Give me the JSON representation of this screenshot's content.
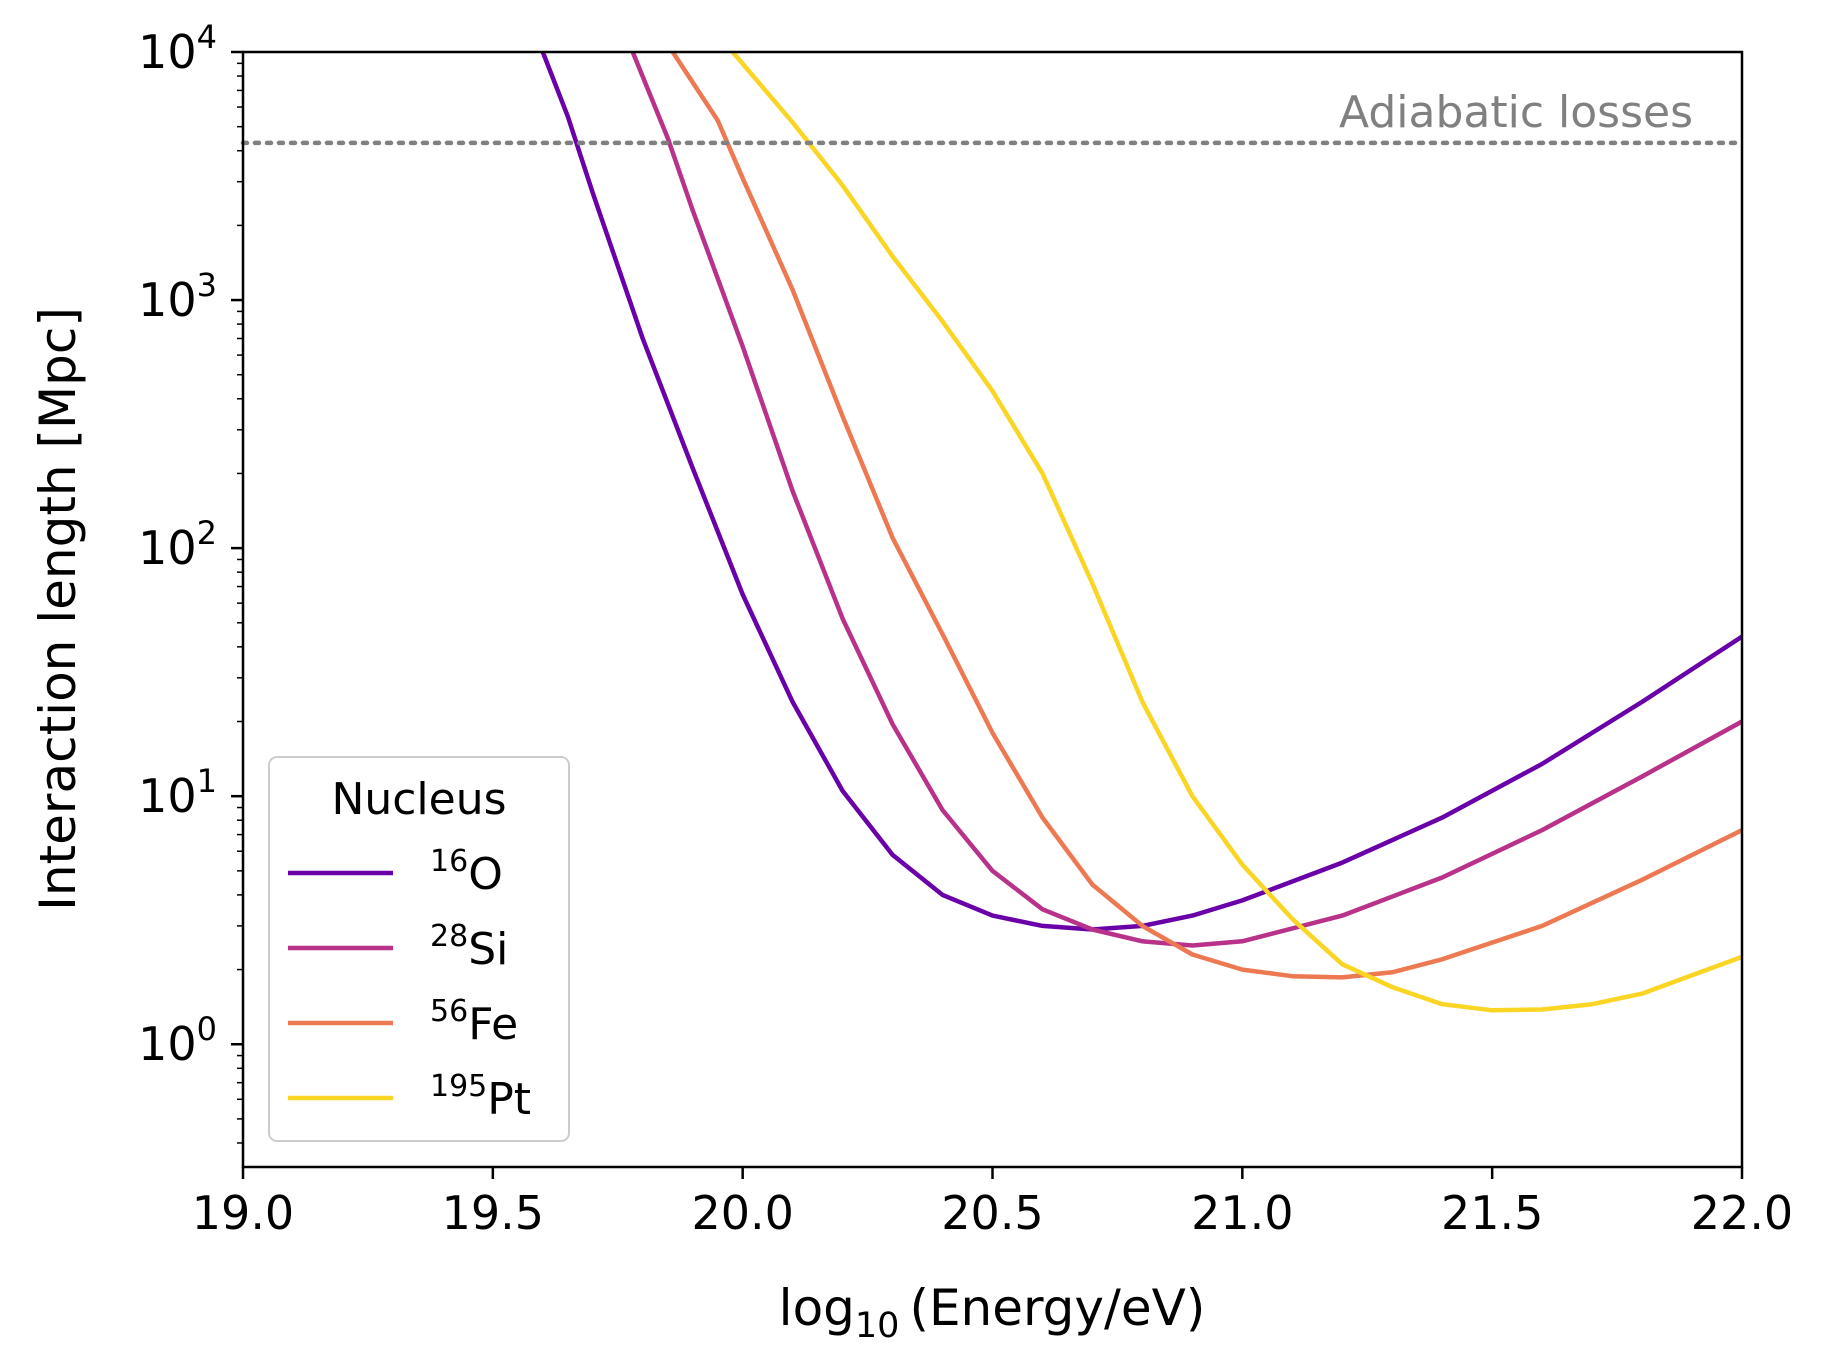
{
  "chart_data": {
    "type": "line",
    "xlabel": {
      "prefix": "log",
      "sub": "10",
      "suffix": "(Energy/eV)"
    },
    "ylabel": "Interaction length [Mpc]",
    "xlim": [
      19.0,
      22.0
    ],
    "ylim": [
      0.32,
      10000
    ],
    "yscale": "log",
    "grid": false,
    "x_ticks": [
      "19.0",
      "19.5",
      "20.0",
      "20.5",
      "21.0",
      "21.5",
      "22.0"
    ],
    "y_ticks": [
      {
        "base": "10",
        "exp": "0",
        "value": 1
      },
      {
        "base": "10",
        "exp": "1",
        "value": 10
      },
      {
        "base": "10",
        "exp": "2",
        "value": 100
      },
      {
        "base": "10",
        "exp": "3",
        "value": 1000
      },
      {
        "base": "10",
        "exp": "4",
        "value": 10000
      }
    ],
    "reference_line": {
      "label": "Adiabatic losses",
      "value": 4300,
      "color": "#808080"
    },
    "legend": {
      "title": "Nucleus",
      "position": "lower-left"
    },
    "series": [
      {
        "name": "16O",
        "mass": "16",
        "element": "O",
        "color": "#6a00a8",
        "x": [
          19.6,
          19.65,
          19.7,
          19.8,
          19.9,
          20.0,
          20.1,
          20.2,
          20.3,
          20.4,
          20.5,
          20.6,
          20.7,
          20.8,
          20.9,
          21.0,
          21.2,
          21.4,
          21.6,
          21.8,
          22.0
        ],
        "y": [
          10000,
          5500,
          2700,
          700,
          210,
          65,
          24,
          10.5,
          5.8,
          4.0,
          3.3,
          3.0,
          2.9,
          3.0,
          3.3,
          3.8,
          5.4,
          8.2,
          13.5,
          24,
          44
        ]
      },
      {
        "name": "28Si",
        "mass": "28",
        "element": "Si",
        "color": "#b83289",
        "x": [
          19.78,
          19.85,
          19.9,
          20.0,
          20.1,
          20.2,
          20.3,
          20.4,
          20.5,
          20.6,
          20.7,
          20.8,
          20.9,
          21.0,
          21.2,
          21.4,
          21.6,
          21.8,
          22.0
        ],
        "y": [
          10000,
          4500,
          2300,
          650,
          170,
          52,
          19.5,
          8.8,
          5.0,
          3.5,
          2.9,
          2.6,
          2.5,
          2.6,
          3.3,
          4.7,
          7.3,
          12,
          20
        ]
      },
      {
        "name": "56Fe",
        "mass": "56",
        "element": "Fe",
        "color": "#ed7953",
        "x": [
          19.86,
          19.95,
          20.0,
          20.1,
          20.2,
          20.3,
          20.4,
          20.5,
          20.6,
          20.7,
          20.8,
          20.9,
          21.0,
          21.1,
          21.2,
          21.3,
          21.4,
          21.6,
          21.8,
          22.0
        ],
        "y": [
          10000,
          5300,
          3100,
          1100,
          340,
          110,
          45,
          18,
          8.2,
          4.4,
          3.0,
          2.3,
          2.0,
          1.88,
          1.86,
          1.95,
          2.2,
          3.0,
          4.6,
          7.3
        ]
      },
      {
        "name": "195Pt",
        "mass": "195",
        "element": "Pt",
        "color": "#fbd524",
        "x": [
          19.98,
          20.1,
          20.2,
          20.3,
          20.4,
          20.5,
          20.6,
          20.7,
          20.8,
          20.9,
          21.0,
          21.1,
          21.2,
          21.3,
          21.4,
          21.5,
          21.6,
          21.7,
          21.8,
          22.0
        ],
        "y": [
          10000,
          5200,
          2900,
          1500,
          820,
          430,
          200,
          72,
          24,
          10,
          5.3,
          3.2,
          2.1,
          1.7,
          1.45,
          1.37,
          1.38,
          1.45,
          1.6,
          2.25
        ]
      }
    ]
  }
}
